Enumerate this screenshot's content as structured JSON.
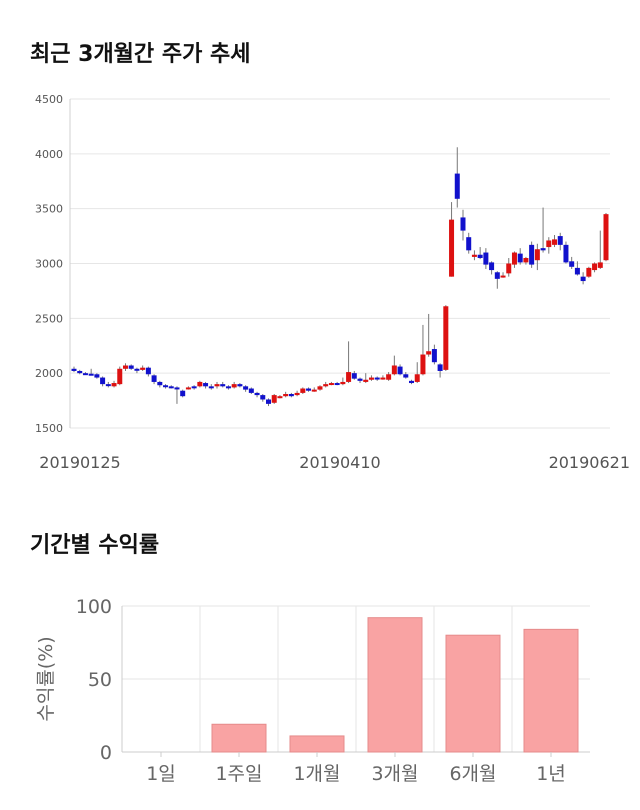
{
  "sections": {
    "price_trend_title": "최근 3개월간 주가 추세",
    "returns_title": "기간별 수익률"
  },
  "colors": {
    "up": "#dd1111",
    "down": "#1111cc",
    "bar": "#f9a3a3",
    "bar_stroke": "#e58b8b",
    "grid": "#e6e6e6"
  },
  "chart_data": [
    {
      "type": "candlestick",
      "title": "",
      "ylim": [
        1500,
        4500
      ],
      "y_ticks": [
        1500,
        2000,
        2500,
        3000,
        3500,
        4000,
        4500
      ],
      "x_tick_labels": [
        "20190125",
        "20190410",
        "20190621"
      ],
      "grid": true,
      "candles": [
        [
          2040,
          2020,
          2060,
          2010
        ],
        [
          2020,
          2000,
          2030,
          1990
        ],
        [
          2000,
          1995,
          2010,
          1985
        ],
        [
          1995,
          1990,
          2040,
          1980
        ],
        [
          1990,
          1960,
          2000,
          1950
        ],
        [
          1960,
          1900,
          1970,
          1880
        ],
        [
          1900,
          1890,
          1920,
          1870
        ],
        [
          1880,
          1910,
          1930,
          1870
        ],
        [
          1900,
          2040,
          2060,
          1890
        ],
        [
          2040,
          2070,
          2090,
          2020
        ],
        [
          2070,
          2040,
          2080,
          2030
        ],
        [
          2040,
          2030,
          2050,
          2000
        ],
        [
          2030,
          2050,
          2070,
          2020
        ],
        [
          2050,
          1990,
          2060,
          1970
        ],
        [
          1980,
          1920,
          1990,
          1900
        ],
        [
          1920,
          1890,
          1930,
          1870
        ],
        [
          1890,
          1880,
          1900,
          1860
        ],
        [
          1880,
          1870,
          1890,
          1860
        ],
        [
          1870,
          1860,
          1880,
          1720
        ],
        [
          1840,
          1790,
          1850,
          1780
        ],
        [
          1860,
          1870,
          1880,
          1850
        ],
        [
          1880,
          1870,
          1890,
          1850
        ],
        [
          1880,
          1920,
          1930,
          1870
        ],
        [
          1910,
          1880,
          1920,
          1860
        ],
        [
          1880,
          1870,
          1900,
          1850
        ],
        [
          1880,
          1900,
          1920,
          1860
        ],
        [
          1900,
          1880,
          1920,
          1870
        ],
        [
          1880,
          1870,
          1890,
          1850
        ],
        [
          1870,
          1900,
          1920,
          1860
        ],
        [
          1900,
          1880,
          1910,
          1870
        ],
        [
          1880,
          1850,
          1890,
          1830
        ],
        [
          1860,
          1820,
          1870,
          1810
        ],
        [
          1820,
          1800,
          1830,
          1780
        ],
        [
          1800,
          1760,
          1810,
          1740
        ],
        [
          1760,
          1720,
          1770,
          1700
        ],
        [
          1730,
          1800,
          1810,
          1720
        ],
        [
          1780,
          1790,
          1800,
          1770
        ],
        [
          1790,
          1810,
          1830,
          1780
        ],
        [
          1810,
          1790,
          1820,
          1780
        ],
        [
          1800,
          1820,
          1840,
          1790
        ],
        [
          1820,
          1860,
          1870,
          1810
        ],
        [
          1860,
          1840,
          1870,
          1830
        ],
        [
          1840,
          1850,
          1870,
          1830
        ],
        [
          1850,
          1880,
          1890,
          1840
        ],
        [
          1880,
          1900,
          1920,
          1870
        ],
        [
          1900,
          1910,
          1920,
          1890
        ],
        [
          1910,
          1900,
          1920,
          1890
        ],
        [
          1900,
          1920,
          1960,
          1890
        ],
        [
          1920,
          2010,
          2290,
          1910
        ],
        [
          2000,
          1950,
          2020,
          1940
        ],
        [
          1950,
          1930,
          1960,
          1910
        ],
        [
          1920,
          1940,
          2000,
          1910
        ],
        [
          1940,
          1960,
          1980,
          1930
        ],
        [
          1960,
          1950,
          1970,
          1930
        ],
        [
          1950,
          1960,
          1980,
          1940
        ],
        [
          1940,
          1990,
          2010,
          1930
        ],
        [
          1990,
          2070,
          2160,
          1980
        ],
        [
          2060,
          1990,
          2080,
          1980
        ],
        [
          1990,
          1960,
          2010,
          1950
        ],
        [
          1930,
          1910,
          1940,
          1900
        ],
        [
          1920,
          1990,
          2100,
          1910
        ],
        [
          1990,
          2170,
          2440,
          1980
        ],
        [
          2170,
          2200,
          2540,
          2150
        ],
        [
          2220,
          2100,
          2260,
          2080
        ],
        [
          2080,
          2020,
          2090,
          1960
        ],
        [
          2030,
          2610,
          2620,
          2020
        ],
        [
          2880,
          3400,
          3560,
          2880
        ],
        [
          3820,
          3590,
          4060,
          3510
        ],
        [
          3420,
          3300,
          3490,
          3210
        ],
        [
          3240,
          3120,
          3280,
          3090
        ],
        [
          3060,
          3080,
          3120,
          3030
        ],
        [
          3080,
          3050,
          3150,
          3040
        ],
        [
          3100,
          2990,
          3140,
          2950
        ],
        [
          3010,
          2940,
          3020,
          2900
        ],
        [
          2920,
          2860,
          2930,
          2770
        ],
        [
          2880,
          2890,
          2920,
          2870
        ],
        [
          2910,
          3000,
          3050,
          2880
        ],
        [
          2990,
          3100,
          3110,
          2960
        ],
        [
          3090,
          3010,
          3140,
          2990
        ],
        [
          3010,
          3050,
          3060,
          2990
        ],
        [
          3170,
          2990,
          3200,
          2960
        ],
        [
          3030,
          3130,
          3180,
          2940
        ],
        [
          3140,
          3120,
          3510,
          3100
        ],
        [
          3150,
          3210,
          3240,
          3090
        ],
        [
          3170,
          3220,
          3260,
          3150
        ],
        [
          3250,
          3170,
          3280,
          3120
        ],
        [
          3170,
          3010,
          3200,
          3000
        ],
        [
          3020,
          2970,
          3060,
          2950
        ],
        [
          2960,
          2900,
          3020,
          2890
        ],
        [
          2880,
          2840,
          2920,
          2810
        ],
        [
          2880,
          2960,
          2970,
          2870
        ],
        [
          2940,
          3000,
          3010,
          2920
        ],
        [
          2960,
          3010,
          3300,
          2950
        ],
        [
          3030,
          3450,
          3460,
          3020
        ]
      ]
    },
    {
      "type": "bar",
      "ylabel": "수익률(%)",
      "ylim": [
        0,
        100
      ],
      "y_ticks": [
        0,
        50,
        100
      ],
      "categories": [
        "1일",
        "1주일",
        "1개월",
        "3개월",
        "6개월",
        "1년"
      ],
      "values": [
        0,
        19,
        11,
        92,
        80,
        84
      ],
      "grid": true
    }
  ]
}
